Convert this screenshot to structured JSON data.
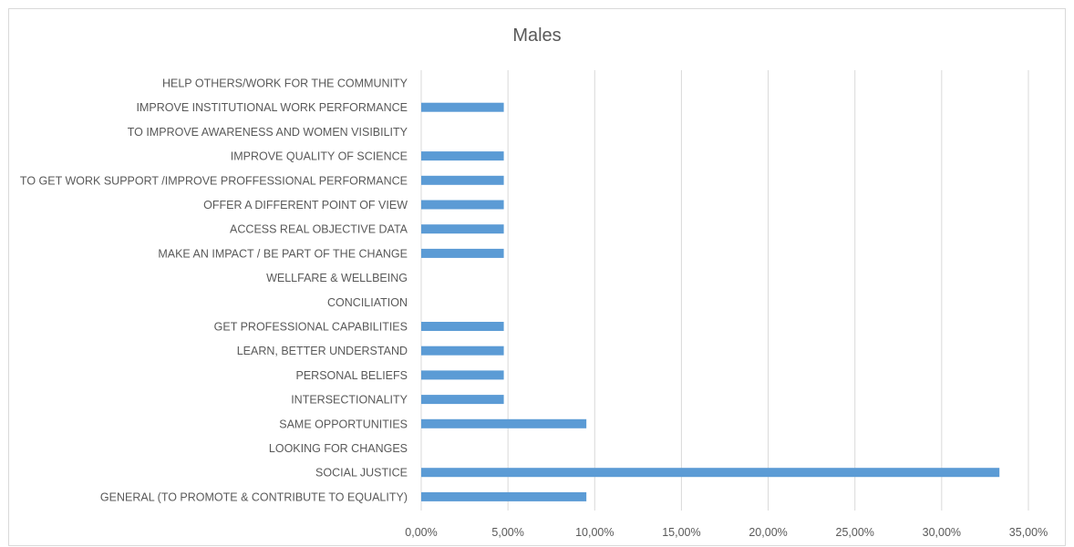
{
  "chart_data": {
    "type": "bar",
    "orientation": "horizontal",
    "title": "Males",
    "xlabel": "",
    "ylabel": "",
    "xlim": [
      0,
      35
    ],
    "x_ticks": [
      "0,00%",
      "5,00%",
      "10,00%",
      "15,00%",
      "20,00%",
      "25,00%",
      "30,00%",
      "35,00%"
    ],
    "grid": "vertical",
    "legend": "none",
    "bar_color": "#5b9bd5",
    "categories": [
      "HELP OTHERS/WORK FOR THE COMMUNITY",
      "IMPROVE INSTITUTIONAL WORK PERFORMANCE",
      "TO IMPROVE AWARENESS AND WOMEN VISIBILITY",
      "IMPROVE QUALITY OF SCIENCE",
      "TO GET WORK SUPPORT /IMPROVE PROFFESSIONAL PERFORMANCE",
      "OFFER A DIFFERENT POINT OF VIEW",
      "ACCESS REAL OBJECTIVE DATA",
      "MAKE AN IMPACT / BE PART OF THE CHANGE",
      "WELLFARE & WELLBEING",
      "CONCILIATION",
      "GET PROFESSIONAL CAPABILITIES",
      "LEARN, BETTER UNDERSTAND",
      "PERSONAL BELIEFS",
      "INTERSECTIONALITY",
      "SAME OPPORTUNITIES",
      "LOOKING FOR CHANGES",
      "SOCIAL JUSTICE",
      "GENERAL (TO PROMOTE & CONTRIBUTE TO EQUALITY)"
    ],
    "values": [
      0,
      4.76,
      0,
      4.76,
      4.76,
      4.76,
      4.76,
      4.76,
      0,
      0,
      4.76,
      4.76,
      4.76,
      4.76,
      9.52,
      0,
      33.33,
      9.52
    ]
  }
}
